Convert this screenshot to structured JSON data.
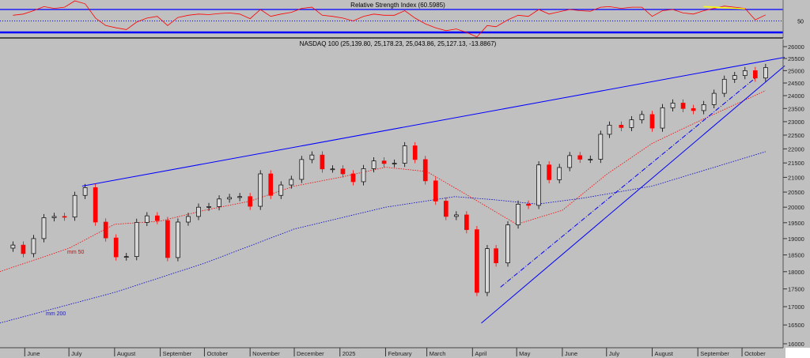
{
  "chart_data": [
    {
      "type": "line",
      "title": "Relative Strength Index (60.5985)",
      "ylim": [
        13,
        100
      ],
      "reference_lines": [
        70,
        50,
        30
      ],
      "tick_labels": [
        "50"
      ],
      "colors": {
        "line": "#ff0000",
        "bands": "#0000ff",
        "trend": "#ffff00"
      },
      "trendline": {
        "from": [
          "2025-09-05",
          75
        ],
        "to": [
          "2025-10-03",
          71
        ]
      },
      "x": [
        "2024-05-24",
        "2024-05-31",
        "2024-06-07",
        "2024-06-14",
        "2024-06-21",
        "2024-06-28",
        "2024-07-05",
        "2024-07-12",
        "2024-07-19",
        "2024-07-26",
        "2024-08-02",
        "2024-08-09",
        "2024-08-16",
        "2024-08-23",
        "2024-08-30",
        "2024-09-06",
        "2024-09-13",
        "2024-09-20",
        "2024-09-27",
        "2024-10-04",
        "2024-10-11",
        "2024-10-18",
        "2024-10-25",
        "2024-11-01",
        "2024-11-08",
        "2024-11-15",
        "2024-11-22",
        "2024-11-29",
        "2024-12-06",
        "2024-12-13",
        "2024-12-20",
        "2024-12-27",
        "2025-01-03",
        "2025-01-10",
        "2025-01-17",
        "2025-01-24",
        "2025-01-31",
        "2025-02-07",
        "2025-02-14",
        "2025-02-21",
        "2025-02-28",
        "2025-03-07",
        "2025-03-14",
        "2025-03-21",
        "2025-03-28",
        "2025-04-04",
        "2025-04-11",
        "2025-04-17",
        "2025-04-25",
        "2025-05-02",
        "2025-05-09",
        "2025-05-16",
        "2025-05-23",
        "2025-05-30",
        "2025-06-06",
        "2025-06-13",
        "2025-06-20",
        "2025-06-27",
        "2025-07-03",
        "2025-07-11",
        "2025-07-18",
        "2025-07-25",
        "2025-08-01",
        "2025-08-08",
        "2025-08-15",
        "2025-08-22",
        "2025-08-29",
        "2025-09-05",
        "2025-09-12",
        "2025-09-19",
        "2025-09-26",
        "2025-10-03",
        "2025-10-10",
        "2025-10-17"
      ],
      "values": [
        60,
        62,
        68,
        75,
        72,
        74,
        85,
        80,
        55,
        42,
        38,
        35,
        48,
        55,
        58,
        42,
        56,
        60,
        62,
        61,
        63,
        64,
        62,
        54,
        70,
        58,
        62,
        65,
        72,
        74,
        60,
        58,
        55,
        50,
        58,
        62,
        60,
        60,
        68,
        55,
        45,
        38,
        33,
        36,
        30,
        22,
        42,
        40,
        52,
        60,
        58,
        70,
        62,
        66,
        70,
        68,
        67,
        74,
        75,
        72,
        74,
        74,
        58,
        68,
        70,
        64,
        62,
        68,
        72,
        76,
        74,
        72,
        52,
        60.6
      ]
    },
    {
      "type": "candlestick",
      "title": "NASDAQ 100 (25,139.80, 25,178.23, 25,043.86, 25,127.13, -13.8867)",
      "y_scale": "log",
      "ylim": [
        16000,
        26000
      ],
      "y_ticks": [
        "26000",
        "25500",
        "25000",
        "24500",
        "24000",
        "23500",
        "23000",
        "22500",
        "22000",
        "21500",
        "21000",
        "20500",
        "20000",
        "19500",
        "19000",
        "18500",
        "18000",
        "17500",
        "17000",
        "16500",
        "16000"
      ],
      "x_tick_labels": [
        {
          "label": "June",
          "date": "2024-06-01"
        },
        {
          "label": "July",
          "date": "2024-07-01"
        },
        {
          "label": "August",
          "date": "2024-08-01"
        },
        {
          "label": "September",
          "date": "2024-09-01"
        },
        {
          "label": "October",
          "date": "2024-10-01"
        },
        {
          "label": "November",
          "date": "2024-11-01"
        },
        {
          "label": "December",
          "date": "2024-12-01"
        },
        {
          "label": "2025",
          "date": "2025-01-01"
        },
        {
          "label": "February",
          "date": "2025-02-01"
        },
        {
          "label": "March",
          "date": "2025-03-01"
        },
        {
          "label": "April",
          "date": "2025-04-01"
        },
        {
          "label": "May",
          "date": "2025-05-01"
        },
        {
          "label": "June",
          "date": "2025-06-01"
        },
        {
          "label": "July",
          "date": "2025-07-01"
        },
        {
          "label": "August",
          "date": "2025-08-01"
        },
        {
          "label": "September",
          "date": "2025-09-01"
        },
        {
          "label": "October",
          "date": "2025-10-01"
        }
      ],
      "grid": false,
      "colors": {
        "up": "#000000",
        "down": "#ff0000",
        "mm50": "#ff0000",
        "mm200": "#0000cc",
        "trendlines": "#0000ff"
      },
      "close": [
        18800,
        18540,
        19000,
        19660,
        19700,
        19680,
        20390,
        20650,
        19520,
        19020,
        18440,
        18450,
        19510,
        19720,
        19570,
        18420,
        19520,
        19700,
        20000,
        20020,
        20270,
        20320,
        20350,
        20030,
        21120,
        20390,
        20740,
        20930,
        21620,
        21780,
        21290,
        21290,
        21120,
        20850,
        21300,
        21570,
        21480,
        21490,
        22110,
        21620,
        20880,
        20200,
        19700,
        19750,
        19280,
        17400,
        18690,
        18260,
        19430,
        20100,
        20060,
        21430,
        20920,
        21340,
        21760,
        21630,
        21630,
        22530,
        22870,
        22780,
        23070,
        23270,
        22760,
        23530,
        23710,
        23500,
        23420,
        23650,
        24090,
        24650,
        24800,
        25000,
        24700,
        25127.13
      ],
      "series": [
        {
          "name": "mm 50",
          "points": [
            [
              "2024-05-15",
              18000
            ],
            [
              "2024-07-01",
              18700
            ],
            [
              "2024-08-01",
              19450
            ],
            [
              "2024-09-01",
              19550
            ],
            [
              "2024-10-01",
              19900
            ],
            [
              "2024-11-01",
              20200
            ],
            [
              "2024-12-01",
              20700
            ],
            [
              "2025-01-01",
              21000
            ],
            [
              "2025-02-01",
              21350
            ],
            [
              "2025-03-01",
              21200
            ],
            [
              "2025-04-01",
              20300
            ],
            [
              "2025-05-01",
              19450
            ],
            [
              "2025-06-01",
              19900
            ],
            [
              "2025-07-01",
              21100
            ],
            [
              "2025-08-01",
              22200
            ],
            [
              "2025-09-01",
              23000
            ],
            [
              "2025-10-17",
              24200
            ]
          ]
        },
        {
          "name": "mm 200",
          "points": [
            [
              "2024-05-15",
              16550
            ],
            [
              "2024-08-01",
              17400
            ],
            [
              "2024-10-01",
              18250
            ],
            [
              "2024-12-01",
              19300
            ],
            [
              "2025-02-01",
              20000
            ],
            [
              "2025-03-20",
              20350
            ],
            [
              "2025-04-15",
              20250
            ],
            [
              "2025-05-15",
              20100
            ],
            [
              "2025-06-15",
              20300
            ],
            [
              "2025-08-01",
              20700
            ],
            [
              "2025-10-17",
              21900
            ]
          ]
        }
      ],
      "trendlines": [
        {
          "style": "solid",
          "from": [
            "2024-07-10",
            20700
          ],
          "to": [
            "2025-10-30",
            25550
          ]
        },
        {
          "style": "solid",
          "from": [
            "2025-04-07",
            16550
          ],
          "to": [
            "2025-10-30",
            25200
          ]
        },
        {
          "style": "dashdot",
          "from": [
            "2025-04-20",
            17550
          ],
          "to": [
            "2025-10-10",
            24700
          ]
        }
      ]
    }
  ]
}
